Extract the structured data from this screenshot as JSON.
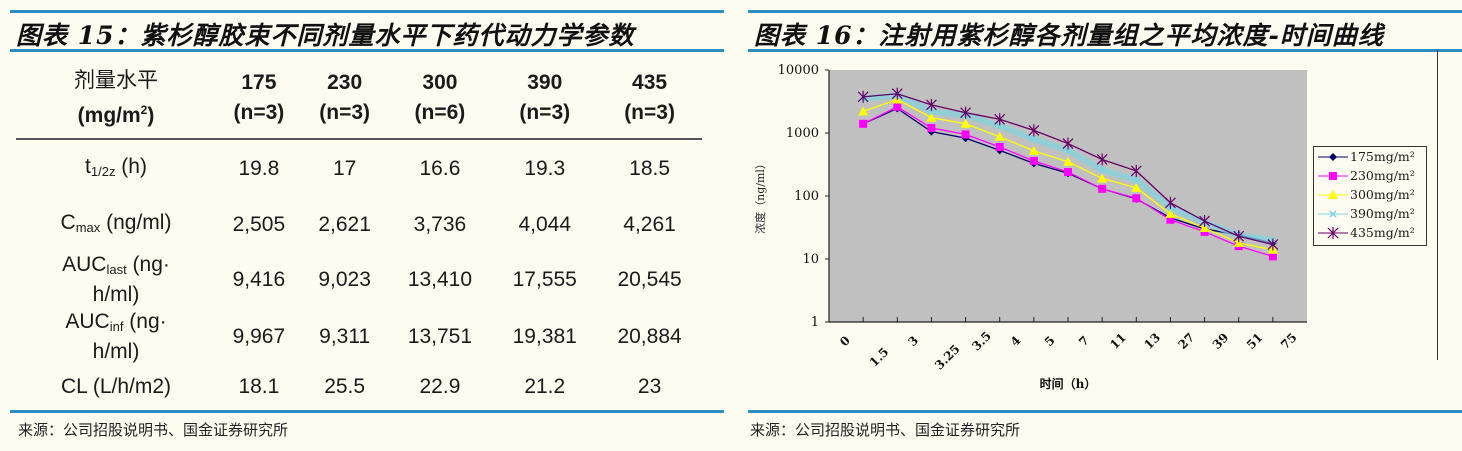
{
  "left": {
    "title": "图表 15：紫杉醇胶束不同剂量水平下药代动力学参数",
    "table": {
      "header_label_line1": "剂量水平",
      "header_label_line2": "(mg/m",
      "header_label_sup": "2",
      "header_label_close": ")",
      "columns": [
        {
          "dose": "175",
          "n": "(n=3)"
        },
        {
          "dose": "230",
          "n": "(n=3)"
        },
        {
          "dose": "300",
          "n": "(n=6)"
        },
        {
          "dose": "390",
          "n": "(n=3)"
        },
        {
          "dose": "435",
          "n": "(n=3)"
        }
      ],
      "rows": [
        {
          "name": "t",
          "sub": "1/2z",
          "unit": " (h)",
          "unit2": "",
          "values": [
            "19.8",
            "17",
            "16.6",
            "19.3",
            "18.5"
          ]
        },
        {
          "name": "C",
          "sub": "max",
          "unit": " (ng/ml)",
          "unit2": "",
          "values": [
            "2,505",
            "2,621",
            "3,736",
            "4,044",
            "4,261"
          ]
        },
        {
          "name": "AUC",
          "sub": "last",
          "unit": " (ng·",
          "unit2": "h/ml)",
          "values": [
            "9,416",
            "9,023",
            "13,410",
            "17,555",
            "20,545"
          ]
        },
        {
          "name": "AUC",
          "sub": "inf",
          "unit": " (ng·",
          "unit2": "h/ml)",
          "values": [
            "9,967",
            "9,311",
            "13,751",
            "19,381",
            "20,884"
          ]
        },
        {
          "name": "CL (L/h/m2)",
          "sub": "",
          "unit": "",
          "unit2": "",
          "values": [
            "18.1",
            "25.5",
            "22.9",
            "21.2",
            "23"
          ]
        }
      ]
    },
    "source": "来源：公司招股说明书、国金证券研究所"
  },
  "right": {
    "title": "图表 16：注射用紫杉醇各剂量组之平均浓度-时间曲线",
    "source": "来源：公司招股说明书、国金证券研究所"
  },
  "chart_data": {
    "type": "line",
    "title": "图表 16：注射用紫杉醇各剂量组之平均浓度-时间曲线",
    "xlabel": "时间（h）",
    "ylabel": "浓度（ng/ml）",
    "yscale": "log",
    "ylim": [
      1,
      10000
    ],
    "yticks": [
      "10000",
      "1000",
      "100",
      "10",
      "1"
    ],
    "categories": [
      "0",
      "1.5",
      "3",
      "3.25",
      "3.5",
      "4",
      "5",
      "7",
      "11",
      "13",
      "27",
      "39",
      "51",
      "75"
    ],
    "x": [
      "1.5",
      "3",
      "3.25",
      "3.5",
      "4",
      "5",
      "7",
      "11",
      "13",
      "27",
      "39",
      "51",
      "75",
      "75+"
    ],
    "grid": false,
    "legend_position": "right",
    "plot_bg": "#c0c0c0",
    "series": [
      {
        "name": "175mg/m²",
        "color": "#000066",
        "marker": "diamond",
        "values": [
          1400,
          2450,
          1050,
          830,
          530,
          330,
          230,
          130,
          90,
          45,
          30,
          24,
          18
        ]
      },
      {
        "name": "230mg/m²",
        "color": "#ff00ff",
        "marker": "square",
        "values": [
          1400,
          2600,
          1200,
          950,
          600,
          360,
          240,
          130,
          92,
          42,
          27,
          16,
          11
        ]
      },
      {
        "name": "300mg/m²",
        "color": "#ffff00",
        "marker": "triangle",
        "values": [
          2200,
          3400,
          1750,
          1400,
          870,
          520,
          350,
          190,
          135,
          52,
          31,
          18,
          14
        ]
      },
      {
        "name": "390mg/m²",
        "color": "#7fd4e0",
        "marker": "x",
        "values": [
          3500,
          4000,
          2200,
          1900,
          1300,
          800,
          530,
          260,
          180,
          65,
          38,
          24,
          20
        ]
      },
      {
        "name": "435mg/m²",
        "color": "#660066",
        "marker": "star",
        "values": [
          3750,
          4200,
          2800,
          2100,
          1650,
          1100,
          680,
          380,
          250,
          78,
          40,
          23,
          17
        ]
      }
    ]
  }
}
